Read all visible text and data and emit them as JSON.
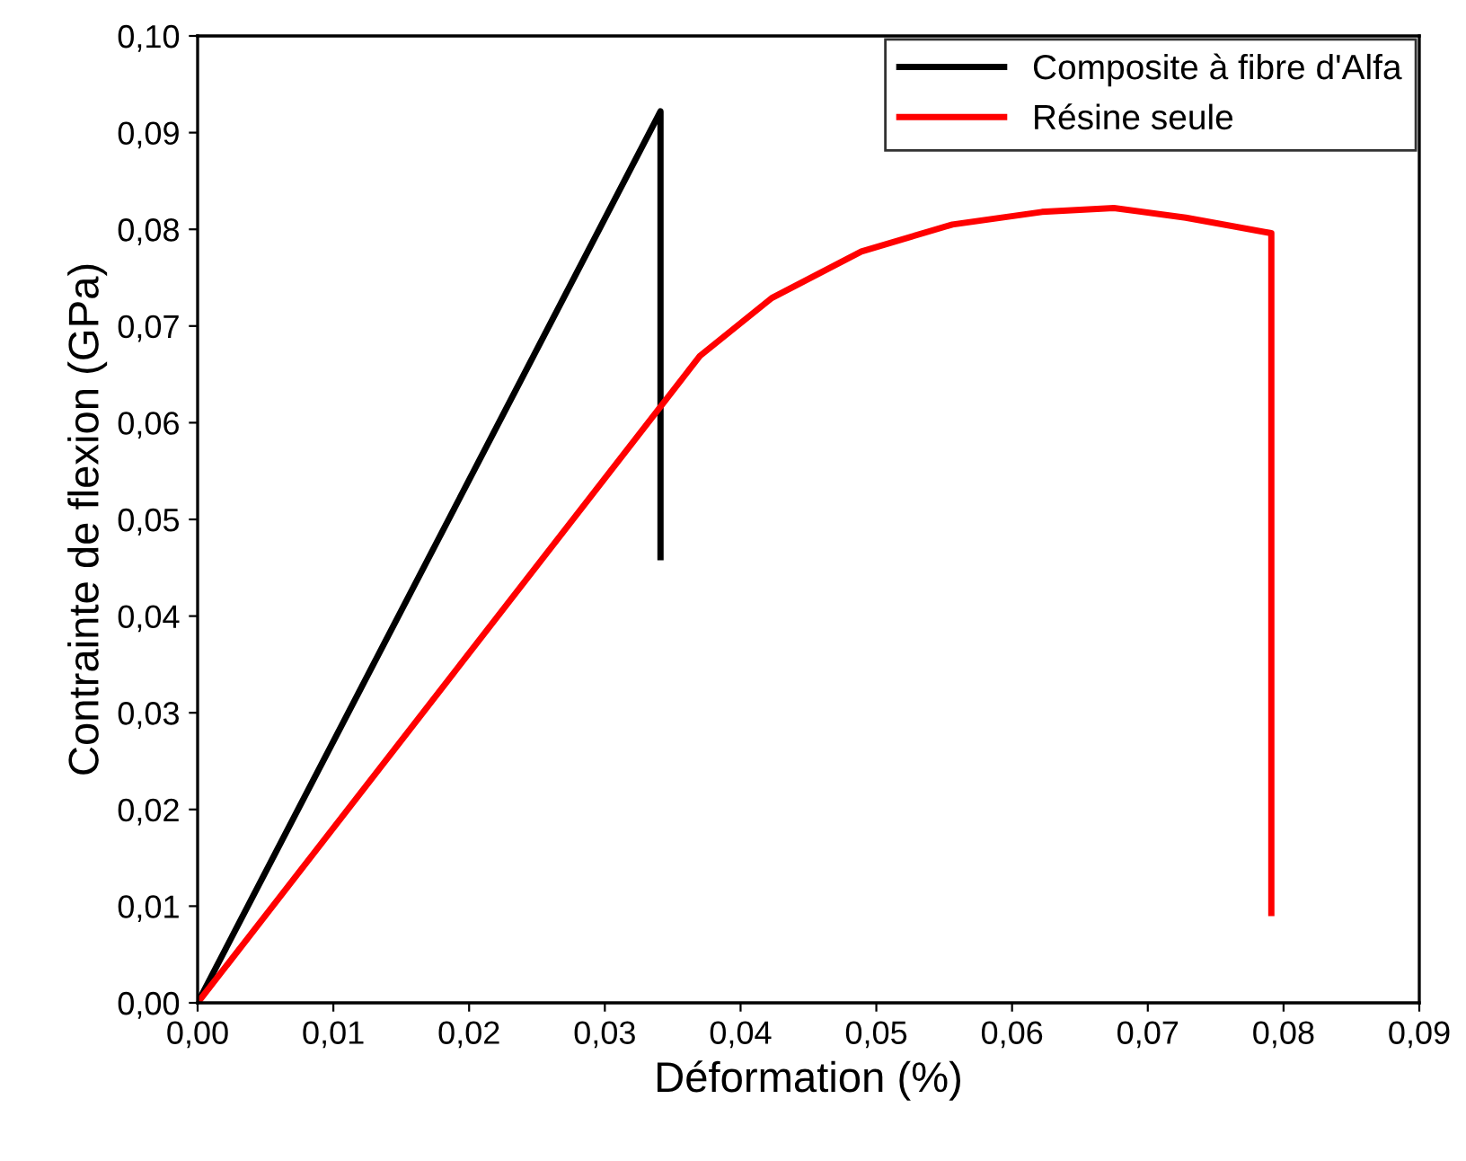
{
  "chart_data": {
    "type": "line",
    "xlabel": "Déformation (%)",
    "ylabel": "Contrainte de flexion (GPa)",
    "xlim": [
      0,
      0.09
    ],
    "ylim": [
      0,
      0.1
    ],
    "xticks": [
      {
        "value": 0,
        "label": "0,00"
      },
      {
        "value": 0.01,
        "label": "0,01"
      },
      {
        "value": 0.02,
        "label": "0,02"
      },
      {
        "value": 0.03,
        "label": "0,03"
      },
      {
        "value": 0.04,
        "label": "0,04"
      },
      {
        "value": 0.05,
        "label": "0,05"
      },
      {
        "value": 0.06,
        "label": "0,06"
      },
      {
        "value": 0.07,
        "label": "0,07"
      },
      {
        "value": 0.08,
        "label": "0,08"
      },
      {
        "value": 0.09,
        "label": "0,09"
      }
    ],
    "yticks": [
      {
        "value": 0,
        "label": "0,00"
      },
      {
        "value": 0.01,
        "label": "0,01"
      },
      {
        "value": 0.02,
        "label": "0,02"
      },
      {
        "value": 0.03,
        "label": "0,03"
      },
      {
        "value": 0.04,
        "label": "0,04"
      },
      {
        "value": 0.05,
        "label": "0,05"
      },
      {
        "value": 0.06,
        "label": "0,06"
      },
      {
        "value": 0.07,
        "label": "0,07"
      },
      {
        "value": 0.08,
        "label": "0,08"
      },
      {
        "value": 0.09,
        "label": "0,09"
      },
      {
        "value": 0.1,
        "label": "0,10"
      }
    ],
    "legend": "top right",
    "grid": false,
    "marker": "none",
    "line_style": "solid",
    "series": [
      {
        "name": "Composite à fibre d'Alfa",
        "color": "#000000",
        "x": [
          0,
          0.0341,
          0.0341
        ],
        "values": [
          0,
          0.0922,
          0.0461
        ]
      },
      {
        "name": "Résine seule",
        "color": "#ff0000",
        "x": [
          0,
          0.037,
          0.0423,
          0.0489,
          0.0556,
          0.0622,
          0.0675,
          0.0728,
          0.0791,
          0.0791
        ],
        "values": [
          0,
          0.0669,
          0.0729,
          0.0777,
          0.0805,
          0.0818,
          0.0822,
          0.0812,
          0.0796,
          0.0093
        ]
      }
    ]
  }
}
